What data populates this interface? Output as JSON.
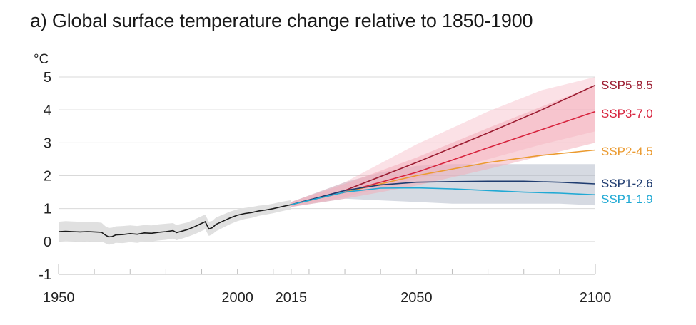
{
  "title": "a) Global surface temperature change relative to 1850-1900",
  "chart_data": {
    "type": "line",
    "title": "a) Global surface temperature change relative to 1850-1900",
    "ylabel": "°C",
    "xlabel": "",
    "xlim": [
      1950,
      2100
    ],
    "ylim": [
      -1,
      5
    ],
    "yticks": [
      "5",
      "4",
      "3",
      "2",
      "1",
      "0",
      "-1"
    ],
    "ytick_values": [
      5,
      4,
      3,
      2,
      1,
      0,
      -1
    ],
    "xticks": [
      "1950",
      "2000",
      "2015",
      "2050",
      "2100"
    ],
    "xtick_values": [
      1950,
      2000,
      2015,
      2050,
      2100
    ],
    "grid": true,
    "historical": {
      "color": "#1a1a1a",
      "band_color": "#e0e0e0",
      "x": [
        1950,
        1952,
        1954,
        1956,
        1958,
        1960,
        1962,
        1963,
        1964,
        1965,
        1966,
        1968,
        1970,
        1972,
        1974,
        1976,
        1978,
        1980,
        1982,
        1983,
        1984,
        1986,
        1988,
        1990,
        1991,
        1992,
        1993,
        1994,
        1996,
        1998,
        2000,
        2002,
        2004,
        2006,
        2008,
        2010,
        2012,
        2014,
        2015
      ],
      "y": [
        0.3,
        0.31,
        0.3,
        0.29,
        0.3,
        0.29,
        0.28,
        0.2,
        0.14,
        0.15,
        0.2,
        0.21,
        0.24,
        0.22,
        0.26,
        0.25,
        0.28,
        0.3,
        0.33,
        0.27,
        0.3,
        0.36,
        0.45,
        0.55,
        0.6,
        0.38,
        0.42,
        0.52,
        0.62,
        0.72,
        0.8,
        0.85,
        0.88,
        0.93,
        0.96,
        1.0,
        1.05,
        1.1,
        1.12
      ],
      "band_lo": [
        0.0,
        0.02,
        0.01,
        0.0,
        0.01,
        0.0,
        0.0,
        -0.05,
        -0.1,
        -0.08,
        -0.04,
        -0.05,
        -0.02,
        -0.04,
        0.0,
        0.0,
        0.03,
        0.05,
        0.09,
        0.04,
        0.07,
        0.14,
        0.22,
        0.32,
        0.37,
        0.17,
        0.22,
        0.31,
        0.42,
        0.53,
        0.62,
        0.68,
        0.72,
        0.78,
        0.82,
        0.86,
        0.91,
        0.96,
        0.98
      ],
      "band_hi": [
        0.6,
        0.62,
        0.61,
        0.6,
        0.6,
        0.59,
        0.57,
        0.47,
        0.41,
        0.42,
        0.46,
        0.47,
        0.49,
        0.47,
        0.5,
        0.49,
        0.52,
        0.54,
        0.56,
        0.5,
        0.53,
        0.58,
        0.67,
        0.77,
        0.82,
        0.6,
        0.63,
        0.73,
        0.82,
        0.91,
        0.98,
        1.02,
        1.05,
        1.09,
        1.11,
        1.15,
        1.2,
        1.24,
        1.26
      ]
    },
    "series": [
      {
        "name": "SSP5-8.5",
        "color": "#9b1b30",
        "x": [
          2015,
          2030,
          2050,
          2070,
          2085,
          2100
        ],
        "y": [
          1.12,
          1.55,
          2.4,
          3.3,
          4.0,
          4.75
        ],
        "band_lo": [
          1.05,
          1.35,
          1.9,
          2.5,
          2.95,
          3.35
        ],
        "band_hi": [
          1.2,
          1.8,
          2.95,
          3.95,
          4.6,
          5.0
        ]
      },
      {
        "name": "SSP3-7.0",
        "color": "#d7233d",
        "x": [
          2015,
          2030,
          2050,
          2070,
          2085,
          2100
        ],
        "y": [
          1.12,
          1.5,
          2.1,
          2.85,
          3.4,
          3.95
        ],
        "band_lo": [
          1.05,
          1.3,
          1.7,
          2.2,
          2.6,
          3.0
        ],
        "band_hi": [
          1.2,
          1.75,
          2.55,
          3.45,
          4.1,
          4.75
        ]
      },
      {
        "name": "SSP2-4.5",
        "color": "#eb9a2f",
        "x": [
          2015,
          2030,
          2050,
          2070,
          2085,
          2100
        ],
        "y": [
          1.12,
          1.5,
          2.0,
          2.4,
          2.62,
          2.78
        ]
      },
      {
        "name": "SSP1-2.6",
        "color": "#1f3c70",
        "x": [
          2015,
          2030,
          2040,
          2050,
          2060,
          2070,
          2080,
          2090,
          2100
        ],
        "y": [
          1.12,
          1.55,
          1.72,
          1.8,
          1.82,
          1.83,
          1.83,
          1.8,
          1.75
        ],
        "band_lo": [
          1.05,
          1.3,
          1.25,
          1.2,
          1.15,
          1.15,
          1.15,
          1.15,
          1.1
        ],
        "band_hi": [
          1.2,
          1.8,
          2.1,
          2.3,
          2.35,
          2.35,
          2.35,
          2.35,
          2.35
        ]
      },
      {
        "name": "SSP1-1.9",
        "color": "#20a9d4",
        "x": [
          2015,
          2030,
          2040,
          2050,
          2060,
          2070,
          2080,
          2090,
          2100
        ],
        "y": [
          1.12,
          1.5,
          1.62,
          1.63,
          1.6,
          1.55,
          1.5,
          1.47,
          1.42
        ]
      }
    ],
    "bands_shown": [
      "SSP5-8.5 / SSP3-7.0 (pink shading)",
      "SSP1-2.6 (grey-blue shading)"
    ],
    "legend_placement": "right, inline labels at line ends"
  }
}
